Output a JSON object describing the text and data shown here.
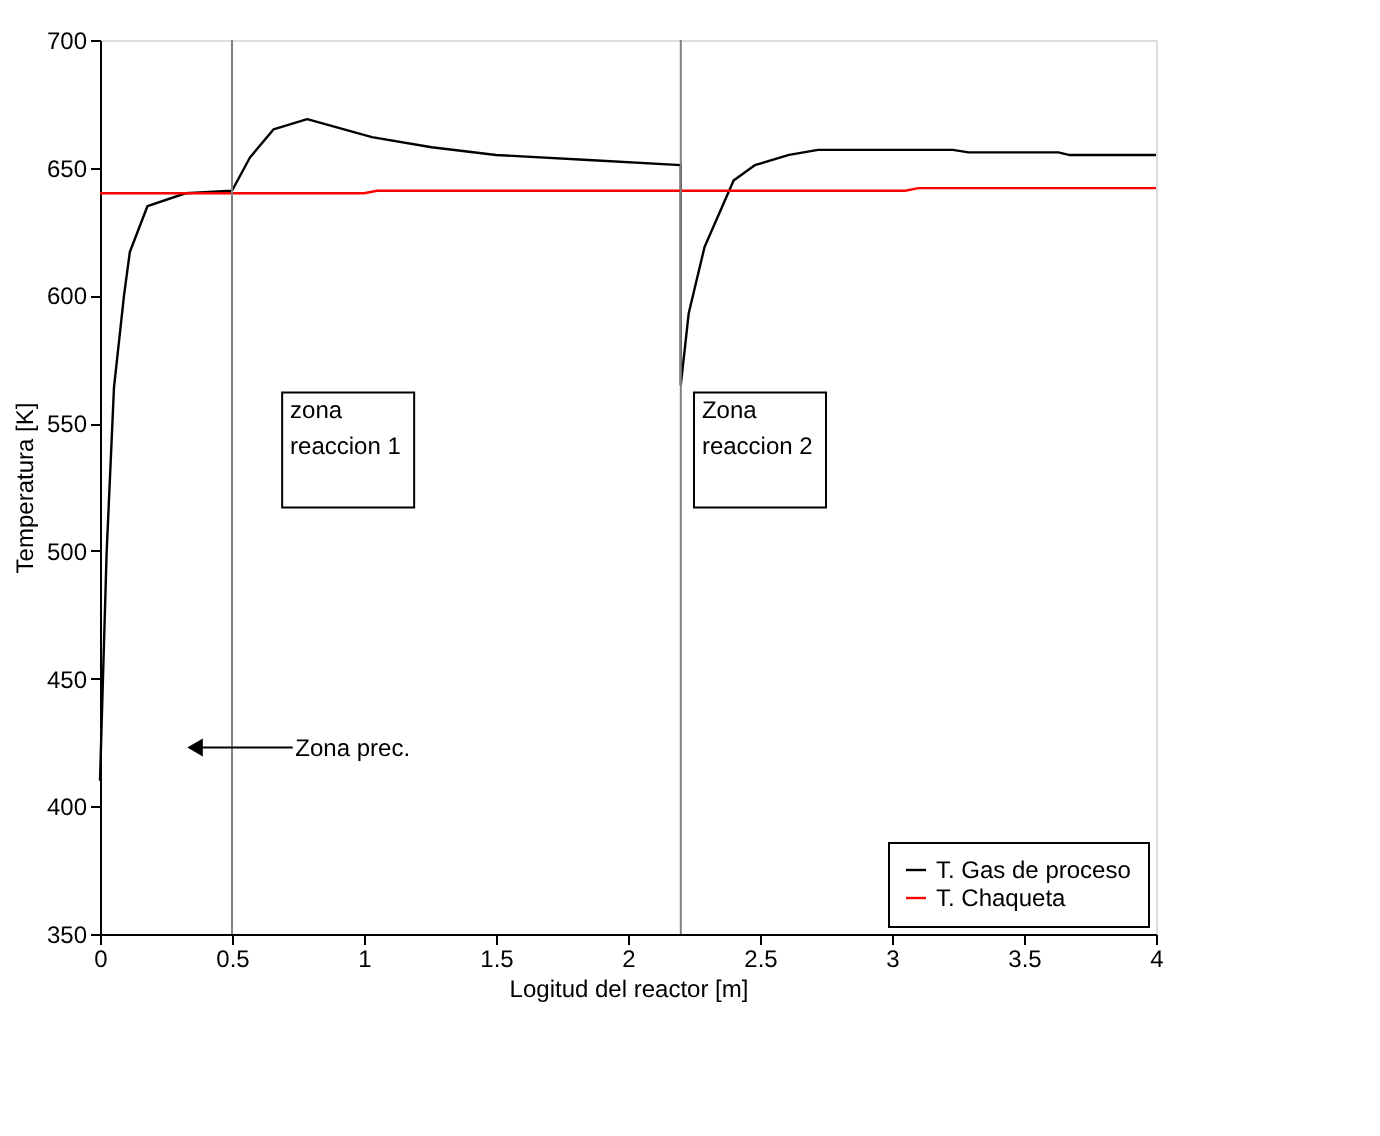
{
  "chart_data": {
    "type": "line",
    "xlabel": "Logitud del reactor [m]",
    "ylabel": "Temperatura [K]",
    "xlim": [
      0,
      4
    ],
    "xticks": [
      0,
      0.5,
      1,
      1.5,
      2,
      2.5,
      3,
      3.5,
      4
    ],
    "ylim": [
      350,
      700
    ],
    "yticks": [
      350,
      400,
      450,
      500,
      550,
      600,
      650,
      700
    ],
    "grid": false,
    "legend": "bottom right",
    "line_style": "solid",
    "marker": "none",
    "series": [
      {
        "name": "T. Gas de proceso",
        "color": "#000000",
        "x": [
          0,
          0.025,
          0.053,
          0.091,
          0.113,
          0.18,
          0.324,
          0.5,
          0.568,
          0.657,
          0.785,
          1.03,
          1.256,
          1.5,
          1.85,
          2.2,
          2.2,
          2.23,
          2.29,
          2.4,
          2.48,
          2.61,
          2.72,
          3.23,
          3.29,
          3.63,
          3.67,
          4
        ],
        "values": [
          410,
          499,
          564,
          600,
          617,
          635,
          640,
          641,
          654,
          665,
          669,
          662,
          658,
          655,
          653,
          651,
          565,
          593,
          619,
          645,
          651,
          655,
          657,
          657,
          656,
          656,
          655,
          655
        ]
      },
      {
        "name": "T. Chaqueta",
        "color": "#ff0000",
        "x": [
          0,
          1.0,
          1.05,
          3.05,
          3.1,
          4
        ],
        "values": [
          640,
          640,
          641,
          641,
          642,
          642
        ]
      }
    ],
    "ref_lines": [
      {
        "axis": "x",
        "value": 0.5,
        "color": "#808080"
      },
      {
        "axis": "x",
        "value": 2.2,
        "color": "#808080"
      }
    ],
    "annotations": [
      "zona\nreaccion 1",
      "Zona\nreaccion 2",
      "Zona prec."
    ]
  }
}
